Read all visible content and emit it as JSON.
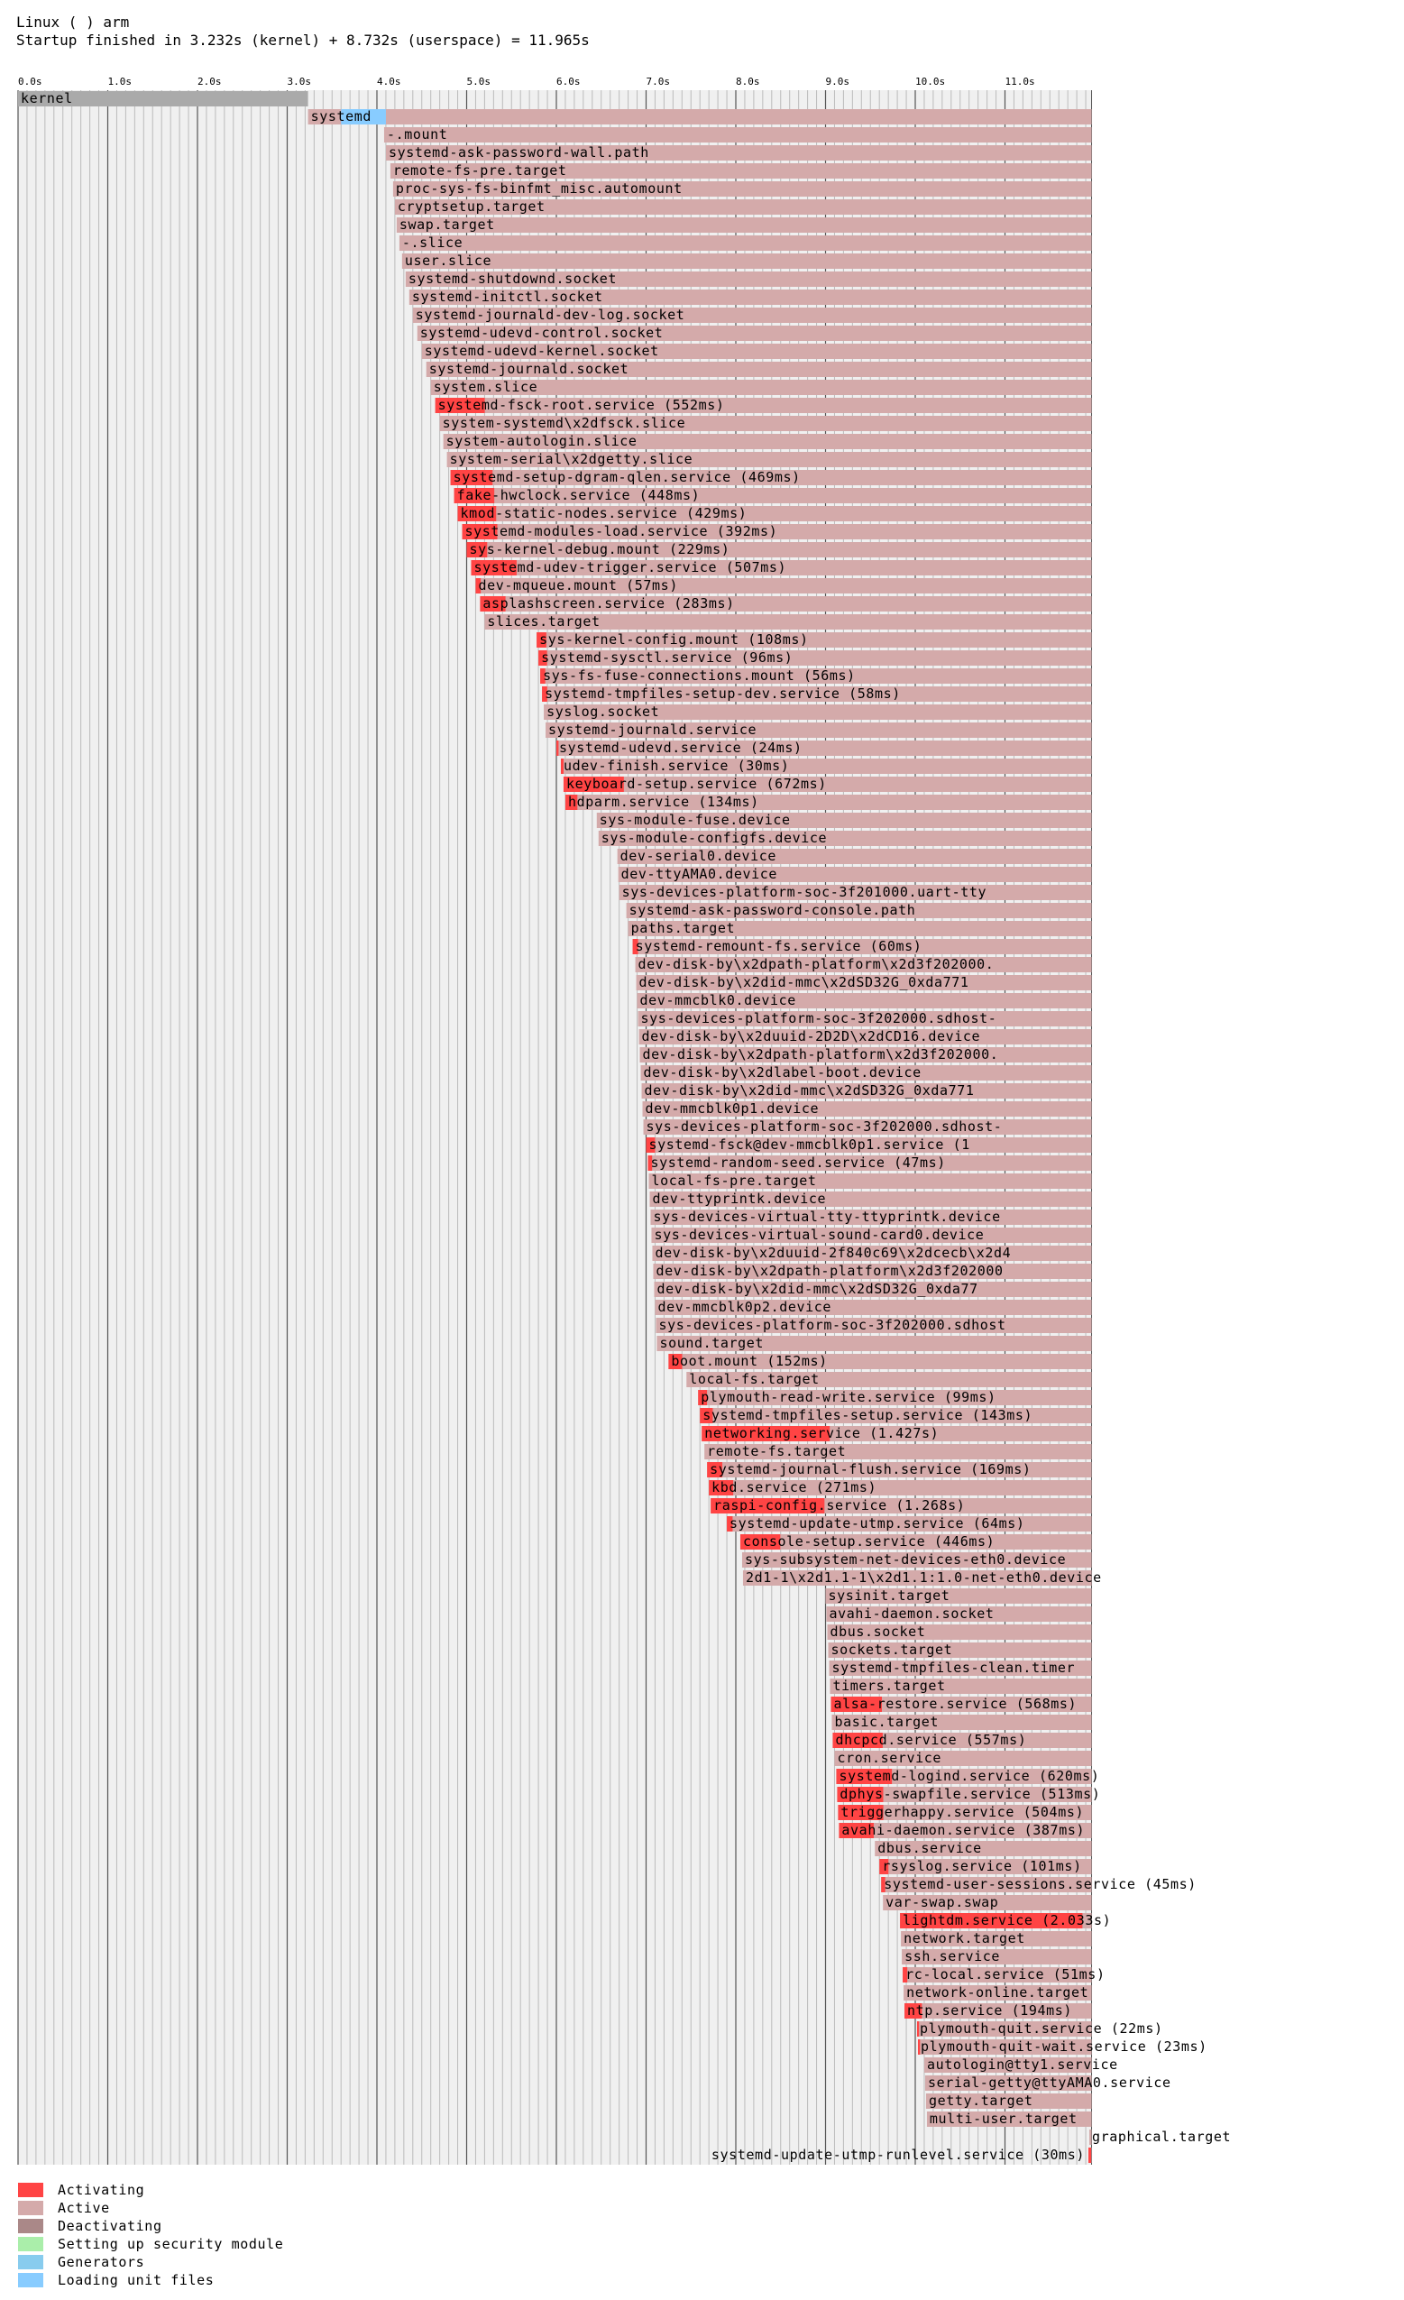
{
  "header": {
    "os_line": "Linux ( ) arm",
    "startup_line": "Startup finished in 3.232s (kernel) + 8.732s (userspace) = 11.965s"
  },
  "colors": {
    "activating": "#ff4444",
    "active": "#d4aaaa",
    "deactivating": "#aa8888",
    "security": "#aaeeaa",
    "generators": "#88ccee",
    "loading": "#88ccff",
    "kernel": "#aaaaaa",
    "grid_major": "#555555",
    "grid_minor": "#bbbbbb",
    "background": "#f0f0f0"
  },
  "chart_data": {
    "type": "timeline",
    "xunit": "s",
    "xlim": [
      0,
      11.965
    ],
    "ticks": [
      "0.0s",
      "1.0s",
      "2.0s",
      "3.0s",
      "4.0s",
      "5.0s",
      "6.0s",
      "7.0s",
      "8.0s",
      "9.0s",
      "10.0s",
      "11.0s"
    ],
    "kernel_bar": {
      "label": "kernel",
      "start": 0.0,
      "end": 3.232
    },
    "systemd_bar": {
      "label": "systemd",
      "start": 3.232,
      "loading_start": 3.6,
      "loading_end": 4.1
    },
    "units": [
      {
        "label": "-.mount",
        "start": 4.08,
        "act": 0
      },
      {
        "label": "systemd-ask-password-wall.path",
        "start": 4.1,
        "act": 0
      },
      {
        "label": "remote-fs-pre.target",
        "start": 4.15,
        "act": 0
      },
      {
        "label": "proc-sys-fs-binfmt_misc.automount",
        "start": 4.18,
        "act": 0
      },
      {
        "label": "cryptsetup.target",
        "start": 4.2,
        "act": 0
      },
      {
        "label": "swap.target",
        "start": 4.22,
        "act": 0
      },
      {
        "label": "-.slice",
        "start": 4.25,
        "act": 0
      },
      {
        "label": "user.slice",
        "start": 4.28,
        "act": 0
      },
      {
        "label": "systemd-shutdownd.socket",
        "start": 4.32,
        "act": 0
      },
      {
        "label": "systemd-initctl.socket",
        "start": 4.36,
        "act": 0
      },
      {
        "label": "systemd-journald-dev-log.socket",
        "start": 4.4,
        "act": 0
      },
      {
        "label": "systemd-udevd-control.socket",
        "start": 4.45,
        "act": 0
      },
      {
        "label": "systemd-udevd-kernel.socket",
        "start": 4.5,
        "act": 0
      },
      {
        "label": "systemd-journald.socket",
        "start": 4.55,
        "act": 0
      },
      {
        "label": "system.slice",
        "start": 4.6,
        "act": 0
      },
      {
        "label": "systemd-fsck-root.service (552ms)",
        "start": 4.65,
        "act": 0.552
      },
      {
        "label": "system-systemd\\x2dfsck.slice",
        "start": 4.7,
        "act": 0
      },
      {
        "label": "system-autologin.slice",
        "start": 4.74,
        "act": 0
      },
      {
        "label": "system-serial\\x2dgetty.slice",
        "start": 4.78,
        "act": 0
      },
      {
        "label": "systemd-setup-dgram-qlen.service (469ms)",
        "start": 4.82,
        "act": 0.469
      },
      {
        "label": "fake-hwclock.service (448ms)",
        "start": 4.86,
        "act": 0.448
      },
      {
        "label": "kmod-static-nodes.service (429ms)",
        "start": 4.9,
        "act": 0.429
      },
      {
        "label": "systemd-modules-load.service (392ms)",
        "start": 4.95,
        "act": 0.392
      },
      {
        "label": "sys-kernel-debug.mount (229ms)",
        "start": 5.0,
        "act": 0.229
      },
      {
        "label": "systemd-udev-trigger.service (507ms)",
        "start": 5.05,
        "act": 0.507
      },
      {
        "label": "dev-mqueue.mount (57ms)",
        "start": 5.1,
        "act": 0.057
      },
      {
        "label": "asplashscreen.service (283ms)",
        "start": 5.15,
        "act": 0.283
      },
      {
        "label": "slices.target",
        "start": 5.2,
        "act": 0
      },
      {
        "label": "sys-kernel-config.mount (108ms)",
        "start": 5.78,
        "act": 0.108
      },
      {
        "label": "systemd-sysctl.service (96ms)",
        "start": 5.8,
        "act": 0.096
      },
      {
        "label": "sys-fs-fuse-connections.mount (56ms)",
        "start": 5.82,
        "act": 0.056
      },
      {
        "label": "systemd-tmpfiles-setup-dev.service (58ms)",
        "start": 5.84,
        "act": 0.058
      },
      {
        "label": "syslog.socket",
        "start": 5.86,
        "act": 0
      },
      {
        "label": "systemd-journald.service",
        "start": 5.88,
        "act": 0
      },
      {
        "label": "systemd-udevd.service (24ms)",
        "start": 6.0,
        "act": 0.024
      },
      {
        "label": "udev-finish.service (30ms)",
        "start": 6.05,
        "act": 0.03
      },
      {
        "label": "keyboard-setup.service (672ms)",
        "start": 6.08,
        "act": 0.672
      },
      {
        "label": "hdparm.service (134ms)",
        "start": 6.1,
        "act": 0.134
      },
      {
        "label": "sys-module-fuse.device",
        "start": 6.45,
        "act": 0
      },
      {
        "label": "sys-module-configfs.device",
        "start": 6.47,
        "act": 0
      },
      {
        "label": "dev-serial0.device",
        "start": 6.68,
        "act": 0
      },
      {
        "label": "dev-ttyAMA0.device",
        "start": 6.69,
        "act": 0
      },
      {
        "label": "sys-devices-platform-soc-3f201000.uart-tty",
        "start": 6.7,
        "act": 0
      },
      {
        "label": "systemd-ask-password-console.path",
        "start": 6.78,
        "act": 0
      },
      {
        "label": "paths.target",
        "start": 6.8,
        "act": 0
      },
      {
        "label": "systemd-remount-fs.service (60ms)",
        "start": 6.85,
        "act": 0.06
      },
      {
        "label": "dev-disk-by\\x2dpath-platform\\x2d3f202000.",
        "start": 6.88,
        "act": 0
      },
      {
        "label": "dev-disk-by\\x2did-mmc\\x2dSD32G_0xda771",
        "start": 6.89,
        "act": 0
      },
      {
        "label": "dev-mmcblk0.device",
        "start": 6.9,
        "act": 0
      },
      {
        "label": "sys-devices-platform-soc-3f202000.sdhost-",
        "start": 6.91,
        "act": 0
      },
      {
        "label": "dev-disk-by\\x2duuid-2D2D\\x2dCD16.device",
        "start": 6.92,
        "act": 0
      },
      {
        "label": "dev-disk-by\\x2dpath-platform\\x2d3f202000.",
        "start": 6.93,
        "act": 0
      },
      {
        "label": "dev-disk-by\\x2dlabel-boot.device",
        "start": 6.94,
        "act": 0
      },
      {
        "label": "dev-disk-by\\x2did-mmc\\x2dSD32G_0xda771",
        "start": 6.95,
        "act": 0
      },
      {
        "label": "dev-mmcblk0p1.device",
        "start": 6.96,
        "act": 0
      },
      {
        "label": "sys-devices-platform-soc-3f202000.sdhost-",
        "start": 6.97,
        "act": 0
      },
      {
        "label": "systemd-fsck@dev-mmcblk0p1.service (1",
        "start": 7.0,
        "act": 0.1
      },
      {
        "label": "systemd-random-seed.service (47ms)",
        "start": 7.02,
        "act": 0.047
      },
      {
        "label": "local-fs-pre.target",
        "start": 7.03,
        "act": 0
      },
      {
        "label": "dev-ttyprintk.device",
        "start": 7.04,
        "act": 0
      },
      {
        "label": "sys-devices-virtual-tty-ttyprintk.device",
        "start": 7.05,
        "act": 0
      },
      {
        "label": "sys-devices-virtual-sound-card0.device",
        "start": 7.06,
        "act": 0
      },
      {
        "label": "dev-disk-by\\x2duuid-2f840c69\\x2dcecb\\x2d4",
        "start": 7.07,
        "act": 0
      },
      {
        "label": "dev-disk-by\\x2dpath-platform\\x2d3f202000",
        "start": 7.08,
        "act": 0
      },
      {
        "label": "dev-disk-by\\x2did-mmc\\x2dSD32G_0xda77",
        "start": 7.09,
        "act": 0
      },
      {
        "label": "dev-mmcblk0p2.device",
        "start": 7.1,
        "act": 0
      },
      {
        "label": "sys-devices-platform-soc-3f202000.sdhost",
        "start": 7.11,
        "act": 0
      },
      {
        "label": "sound.target",
        "start": 7.12,
        "act": 0
      },
      {
        "label": "boot.mount (152ms)",
        "start": 7.25,
        "act": 0.152
      },
      {
        "label": "local-fs.target",
        "start": 7.45,
        "act": 0
      },
      {
        "label": "plymouth-read-write.service (99ms)",
        "start": 7.58,
        "act": 0.099
      },
      {
        "label": "systemd-tmpfiles-setup.service (143ms)",
        "start": 7.6,
        "act": 0.143
      },
      {
        "label": "networking.service (1.427s)",
        "start": 7.62,
        "act": 1.427
      },
      {
        "label": "remote-fs.target",
        "start": 7.65,
        "act": 0
      },
      {
        "label": "systemd-journal-flush.service (169ms)",
        "start": 7.68,
        "act": 0.169
      },
      {
        "label": "kbd.service (271ms)",
        "start": 7.7,
        "act": 0.271
      },
      {
        "label": "raspi-config.service (1.268s)",
        "start": 7.72,
        "act": 1.268
      },
      {
        "label": "systemd-update-utmp.service (64ms)",
        "start": 7.9,
        "act": 0.064
      },
      {
        "label": "console-setup.service (446ms)",
        "start": 8.05,
        "act": 0.446
      },
      {
        "label": "sys-subsystem-net-devices-eth0.device",
        "start": 8.07,
        "act": 0
      },
      {
        "label": "2d1-1\\x2d1.1-1\\x2d1.1:1.0-net-eth0.device",
        "start": 8.08,
        "act": 0
      },
      {
        "label": "sysinit.target",
        "start": 9.0,
        "act": 0
      },
      {
        "label": "avahi-daemon.socket",
        "start": 9.01,
        "act": 0
      },
      {
        "label": "dbus.socket",
        "start": 9.02,
        "act": 0
      },
      {
        "label": "sockets.target",
        "start": 9.03,
        "act": 0
      },
      {
        "label": "systemd-tmpfiles-clean.timer",
        "start": 9.04,
        "act": 0
      },
      {
        "label": "timers.target",
        "start": 9.05,
        "act": 0
      },
      {
        "label": "alsa-restore.service (568ms)",
        "start": 9.06,
        "act": 0.568
      },
      {
        "label": "basic.target",
        "start": 9.07,
        "act": 0
      },
      {
        "label": "dhcpcd.service (557ms)",
        "start": 9.08,
        "act": 0.557
      },
      {
        "label": "cron.service",
        "start": 9.1,
        "act": 0
      },
      {
        "label": "systemd-logind.service (620ms)",
        "start": 9.12,
        "act": 0.62
      },
      {
        "label": "dphys-swapfile.service (513ms)",
        "start": 9.13,
        "act": 0.513
      },
      {
        "label": "triggerhappy.service (504ms)",
        "start": 9.14,
        "act": 0.504
      },
      {
        "label": "avahi-daemon.service (387ms)",
        "start": 9.15,
        "act": 0.387
      },
      {
        "label": "dbus.service",
        "start": 9.55,
        "act": 0
      },
      {
        "label": "rsyslog.service (101ms)",
        "start": 9.6,
        "act": 0.101
      },
      {
        "label": "systemd-user-sessions.service (45ms)",
        "start": 9.62,
        "act": 0.045
      },
      {
        "label": "var-swap.swap",
        "start": 9.64,
        "act": 0
      },
      {
        "label": "lightdm.service (2.033s)",
        "start": 9.83,
        "act": 2.033
      },
      {
        "label": "network.target",
        "start": 9.84,
        "act": 0
      },
      {
        "label": "ssh.service",
        "start": 9.85,
        "act": 0
      },
      {
        "label": "rc-local.service (51ms)",
        "start": 9.86,
        "act": 0.051
      },
      {
        "label": "network-online.target",
        "start": 9.87,
        "act": 0
      },
      {
        "label": "ntp.service (194ms)",
        "start": 9.88,
        "act": 0.194
      },
      {
        "label": "plymouth-quit.service (22ms)",
        "start": 10.02,
        "act": 0.022
      },
      {
        "label": "plymouth-quit-wait.service (23ms)",
        "start": 10.03,
        "act": 0.023
      },
      {
        "label": "autologin@tty1.service",
        "start": 10.1,
        "act": 0
      },
      {
        "label": "serial-getty@ttyAMA0.service",
        "start": 10.11,
        "act": 0
      },
      {
        "label": "getty.target",
        "start": 10.12,
        "act": 0
      },
      {
        "label": "multi-user.target",
        "start": 10.13,
        "act": 0
      },
      {
        "label": "graphical.target",
        "start": 11.94,
        "act": 0
      },
      {
        "label": "systemd-update-utmp-runlevel.service (30ms)",
        "start": 11.93,
        "act": 0.03
      }
    ],
    "legend": [
      {
        "label": "Activating",
        "color_key": "activating"
      },
      {
        "label": "Active",
        "color_key": "active"
      },
      {
        "label": "Deactivating",
        "color_key": "deactivating"
      },
      {
        "label": "Setting up security module",
        "color_key": "security"
      },
      {
        "label": "Generators",
        "color_key": "generators"
      },
      {
        "label": "Loading unit files",
        "color_key": "loading"
      }
    ]
  }
}
